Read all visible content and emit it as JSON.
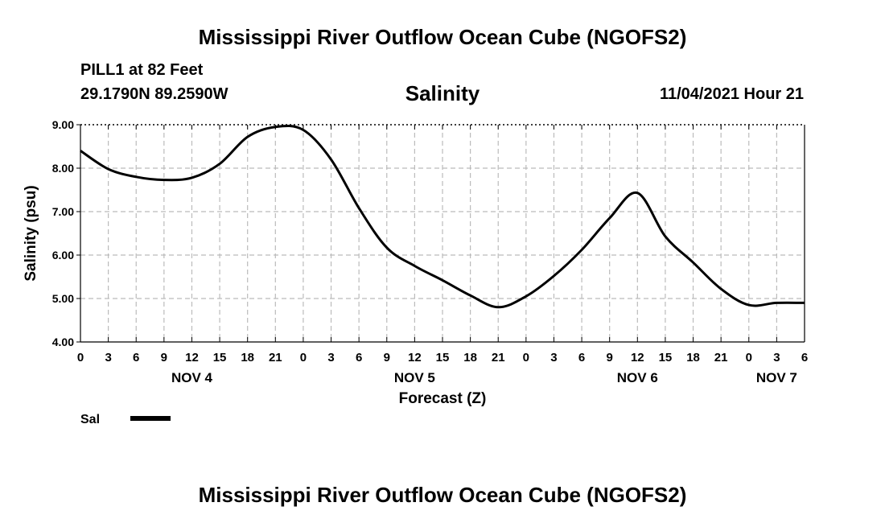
{
  "header": {
    "title": "Mississippi River Outflow Ocean Cube (NGOFS2)",
    "station": "PILL1 at 82 Feet",
    "coordinates": "29.1790N  89.2590W",
    "parameter": "Salinity",
    "timestamp": "11/04/2021 Hour 21"
  },
  "footer": {
    "title": "Mississippi River Outflow Ocean Cube (NGOFS2)"
  },
  "colors": {
    "line": "#000000",
    "grid": "#bbbbbb",
    "background": "#ffffff"
  },
  "chart_data": {
    "type": "line",
    "xlabel": "Forecast (Z)",
    "ylabel": "Salinity (psu)",
    "ylim": [
      4.0,
      9.0
    ],
    "yticks": [
      "4.00",
      "5.00",
      "6.00",
      "7.00",
      "8.00",
      "9.00"
    ],
    "xticks": [
      "0",
      "3",
      "6",
      "9",
      "12",
      "15",
      "18",
      "21",
      "0",
      "3",
      "6",
      "9",
      "12",
      "15",
      "18",
      "21",
      "0",
      "3",
      "6",
      "9",
      "12",
      "15",
      "18",
      "21",
      "0",
      "3",
      "6"
    ],
    "day_labels": [
      {
        "label": "NOV 4",
        "tick": 4
      },
      {
        "label": "NOV 5",
        "tick": 12
      },
      {
        "label": "NOV 6",
        "tick": 20
      },
      {
        "label": "NOV 7",
        "tick": 25
      }
    ],
    "grid": true,
    "legend": "bottom-left",
    "series": [
      {
        "name": "Sal",
        "x": [
          0,
          3,
          6,
          9,
          12,
          15,
          18,
          21,
          24,
          27,
          30,
          33,
          36,
          39,
          42,
          45,
          48,
          51,
          54,
          57,
          60,
          63,
          66,
          69,
          72,
          75,
          78
        ],
        "values": [
          8.4,
          7.98,
          7.8,
          7.73,
          7.78,
          8.1,
          8.72,
          8.95,
          8.88,
          8.2,
          7.08,
          6.17,
          5.75,
          5.42,
          5.07,
          4.8,
          5.05,
          5.52,
          6.12,
          6.85,
          7.43,
          6.43,
          5.83,
          5.22,
          4.85,
          4.9,
          4.9
        ]
      }
    ]
  }
}
